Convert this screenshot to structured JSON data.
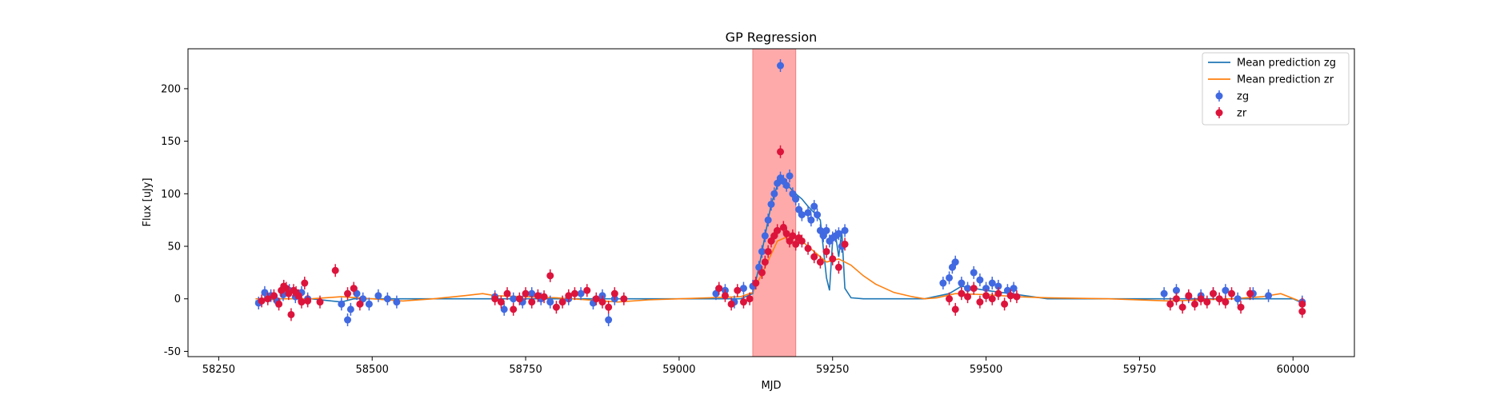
{
  "chart_data": {
    "type": "scatter",
    "title": "GP Regression",
    "xlabel": "MJD",
    "ylabel": "Flux [uJy]",
    "xlim": [
      58200,
      60100
    ],
    "ylim": [
      -55,
      238
    ],
    "xticks": [
      58250,
      58500,
      58750,
      59000,
      59250,
      59500,
      59750,
      60000
    ],
    "yticks": [
      -50,
      0,
      50,
      100,
      150,
      200
    ],
    "grid": false,
    "legend_position": "top-right",
    "shaded_region": {
      "x_start": 59120,
      "x_end": 59190,
      "color": "#ffaaaa"
    },
    "colors": {
      "mean_zg": "#1f77b4",
      "mean_zr": "#ff7f0e",
      "zg": "#4169e1",
      "zr": "#dc143c"
    },
    "mean_predictions": [
      {
        "name": "Mean prediction zg",
        "color_key": "mean_zg",
        "x": [
          58310,
          58350,
          58400,
          58450,
          58470,
          58500,
          58550,
          58650,
          58700,
          58750,
          58800,
          58850,
          58900,
          59000,
          59100,
          59120,
          59130,
          59140,
          59150,
          59160,
          59165,
          59170,
          59180,
          59190,
          59200,
          59210,
          59220,
          59230,
          59240,
          59245,
          59250,
          59255,
          59260,
          59265,
          59270,
          59280,
          59300,
          59400,
          59440,
          59460,
          59500,
          59540,
          59600,
          59800,
          59850,
          59900,
          59950,
          60000,
          60015
        ],
        "y": [
          -2,
          0,
          0,
          -3,
          0,
          0,
          0,
          0,
          0,
          0,
          0,
          0,
          0,
          0,
          0,
          5,
          30,
          60,
          90,
          108,
          112,
          110,
          106,
          100,
          95,
          88,
          82,
          75,
          20,
          8,
          55,
          60,
          40,
          65,
          10,
          1,
          0,
          0,
          5,
          12,
          8,
          5,
          0,
          0,
          0,
          0,
          0,
          0,
          -4
        ]
      },
      {
        "name": "Mean prediction zr",
        "color_key": "mean_zr",
        "x": [
          58310,
          58350,
          58400,
          58450,
          58500,
          58550,
          58600,
          58650,
          58680,
          58700,
          58750,
          58800,
          58850,
          58900,
          58950,
          59000,
          59050,
          59100,
          59120,
          59140,
          59160,
          59180,
          59200,
          59220,
          59240,
          59260,
          59280,
          59300,
          59320,
          59350,
          59380,
          59400,
          59420,
          59450,
          59500,
          59550,
          59600,
          59700,
          59800,
          59850,
          59900,
          59950,
          59980,
          60015
        ],
        "y": [
          0,
          0,
          0,
          2,
          0,
          -2,
          0,
          3,
          5,
          3,
          2,
          1,
          -1,
          -3,
          -1,
          0,
          1,
          2,
          6,
          30,
          55,
          60,
          55,
          45,
          35,
          38,
          32,
          22,
          14,
          6,
          2,
          0,
          1,
          5,
          4,
          2,
          1,
          0,
          -2,
          -1,
          0,
          2,
          5,
          -3
        ]
      }
    ],
    "series": [
      {
        "name": "zg",
        "color_key": "zg",
        "x": [
          58315,
          58325,
          58335,
          58345,
          58355,
          58365,
          58375,
          58385,
          58395,
          58450,
          58460,
          58465,
          58475,
          58485,
          58495,
          58510,
          58525,
          58540,
          58700,
          58715,
          58730,
          58745,
          58760,
          58775,
          58790,
          58820,
          58840,
          58860,
          58875,
          58885,
          58895,
          59060,
          59075,
          59090,
          59105,
          59120,
          59130,
          59135,
          59140,
          59145,
          59150,
          59155,
          59160,
          59165,
          59170,
          59175,
          59180,
          59185,
          59190,
          59195,
          59200,
          59210,
          59215,
          59220,
          59225,
          59230,
          59235,
          59240,
          59245,
          59250,
          59255,
          59260,
          59265,
          59270,
          59430,
          59440,
          59445,
          59450,
          59460,
          59470,
          59480,
          59490,
          59500,
          59510,
          59520,
          59535,
          59545,
          59790,
          59810,
          59830,
          59850,
          59870,
          59890,
          59910,
          59935,
          59960,
          60015
        ],
        "y": [
          -4,
          6,
          3,
          -2,
          4,
          8,
          2,
          6,
          0,
          -5,
          -20,
          -10,
          5,
          0,
          -5,
          3,
          0,
          -3,
          2,
          -10,
          0,
          -3,
          5,
          0,
          -3,
          0,
          5,
          -4,
          3,
          -20,
          0,
          5,
          8,
          -3,
          10,
          12,
          30,
          45,
          60,
          75,
          90,
          100,
          110,
          115,
          112,
          108,
          117,
          100,
          95,
          85,
          80,
          82,
          75,
          88,
          80,
          65,
          60,
          65,
          55,
          58,
          60,
          62,
          50,
          65,
          15,
          20,
          30,
          35,
          15,
          10,
          25,
          18,
          10,
          15,
          12,
          8,
          10,
          5,
          8,
          2,
          3,
          5,
          8,
          0,
          5,
          3,
          -3
        ]
      },
      {
        "name": "zr",
        "color_key": "zr",
        "x": [
          58320,
          58330,
          58340,
          58348,
          58352,
          58356,
          58360,
          58364,
          58368,
          58372,
          58376,
          58380,
          58385,
          58390,
          58395,
          58415,
          58440,
          58460,
          58470,
          58480,
          58700,
          58710,
          58720,
          58730,
          58740,
          58750,
          58760,
          58770,
          58780,
          58790,
          58800,
          58810,
          58820,
          58830,
          58850,
          58865,
          58875,
          58885,
          58895,
          58910,
          59065,
          59075,
          59085,
          59095,
          59105,
          59115,
          59125,
          59135,
          59140,
          59145,
          59150,
          59155,
          59160,
          59165,
          59170,
          59175,
          59180,
          59185,
          59190,
          59195,
          59200,
          59210,
          59220,
          59230,
          59240,
          59250,
          59260,
          59270,
          59440,
          59450,
          59460,
          59470,
          59480,
          59490,
          59500,
          59510,
          59520,
          59530,
          59540,
          59550,
          59800,
          59810,
          59820,
          59830,
          59840,
          59850,
          59860,
          59870,
          59880,
          59890,
          59900,
          59915,
          59930,
          60015,
          60015
        ],
        "y": [
          -2,
          0,
          3,
          -5,
          8,
          12,
          10,
          5,
          -15,
          8,
          6,
          3,
          -3,
          15,
          -2,
          -3,
          27,
          5,
          10,
          -5,
          0,
          -3,
          5,
          -10,
          0,
          5,
          -3,
          3,
          2,
          22,
          -8,
          -3,
          3,
          5,
          8,
          0,
          -3,
          -8,
          5,
          0,
          10,
          3,
          -5,
          8,
          -3,
          0,
          15,
          25,
          35,
          45,
          55,
          60,
          65,
          140,
          68,
          62,
          55,
          60,
          52,
          58,
          55,
          48,
          40,
          35,
          45,
          38,
          30,
          52,
          0,
          -10,
          5,
          2,
          10,
          -3,
          3,
          0,
          5,
          -5,
          3,
          2,
          -5,
          0,
          -8,
          3,
          -5,
          0,
          -3,
          5,
          0,
          -3,
          5,
          -8,
          5,
          -5,
          -12
        ]
      },
      {
        "name": "",
        "color_key": "zg",
        "x": [
          59165
        ],
        "y": [
          222
        ]
      }
    ]
  }
}
